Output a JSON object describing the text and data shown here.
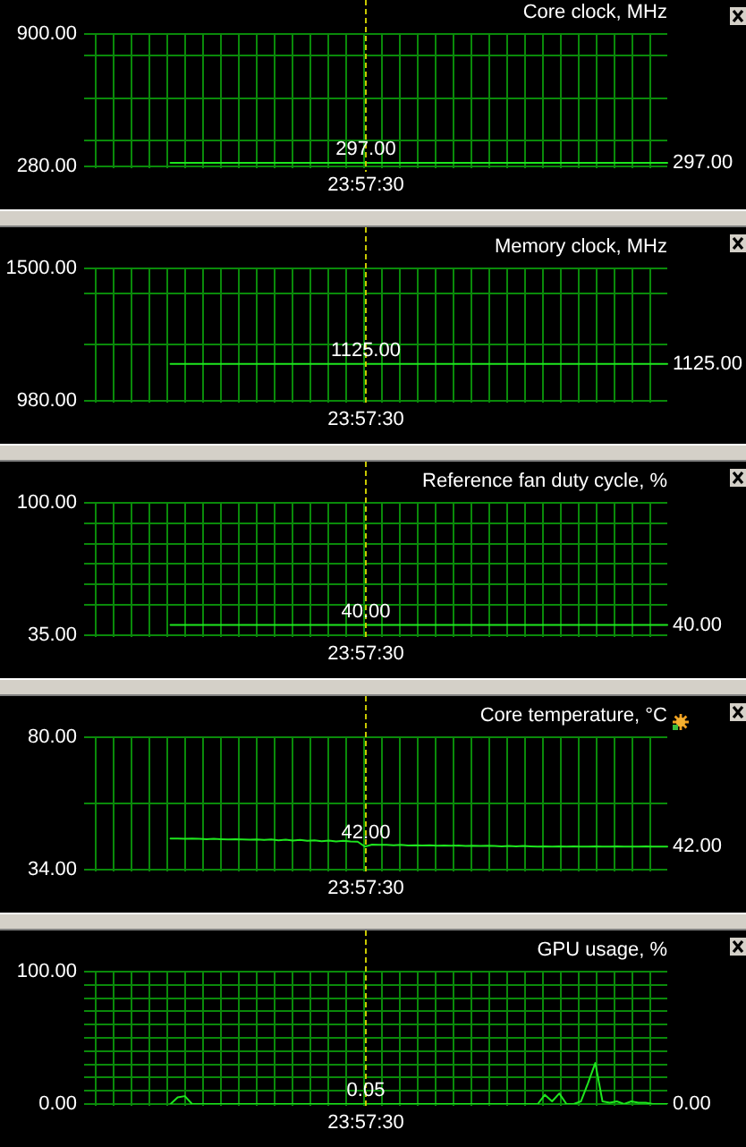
{
  "chart_data": [
    {
      "type": "line",
      "title": "Core clock, MHz",
      "tick_labels": "y",
      "grid": true,
      "categories": [
        null,
        null,
        null,
        null,
        null,
        null,
        null,
        null,
        null,
        null,
        null,
        null,
        null,
        null,
        null,
        null,
        null,
        null,
        null,
        null,
        null,
        null,
        null,
        null,
        null,
        null,
        null,
        null,
        null,
        null,
        null,
        null,
        null,
        null,
        null,
        null,
        null,
        null,
        null,
        null,
        null,
        null,
        null,
        null,
        null,
        null,
        null,
        null,
        null,
        null,
        null,
        null,
        null,
        null,
        null,
        null,
        null,
        null,
        null,
        null,
        null,
        null,
        null,
        null,
        null,
        null,
        null,
        null,
        null,
        null,
        null,
        null,
        null,
        null,
        null,
        null,
        null,
        null,
        null,
        null,
        null,
        null
      ],
      "values": [
        null,
        null,
        null,
        null,
        null,
        null,
        null,
        null,
        null,
        null,
        null,
        null,
        297,
        297,
        297,
        297,
        297,
        297,
        297,
        297,
        297,
        297,
        297,
        297,
        297,
        297,
        297,
        297,
        297,
        297,
        297,
        297,
        297,
        297,
        297,
        297,
        297,
        297,
        297,
        297,
        297,
        297,
        297,
        297,
        297,
        297,
        297,
        297,
        297,
        297,
        297,
        297,
        297,
        297,
        297,
        297,
        297,
        297,
        297,
        297,
        297,
        297,
        297,
        297,
        297,
        297,
        297,
        297,
        297,
        297,
        297,
        297,
        297,
        297,
        297,
        297,
        297,
        297,
        297,
        297,
        297,
        297
      ],
      "color": "#1ee61e",
      "ylim": [
        280,
        900
      ],
      "yticks": [
        {
          "value": 280,
          "label": "280.00"
        },
        {
          "value": 400,
          "label": null
        },
        {
          "value": 600,
          "label": null
        },
        {
          "value": 800,
          "label": null
        },
        {
          "value": 900,
          "label": "900.00"
        }
      ],
      "annotations": [
        "297.00",
        "297.00",
        "23:57:30"
      ]
    },
    {
      "type": "line",
      "title": "Memory clock, MHz",
      "tick_labels": "y",
      "grid": true,
      "categories": [
        null,
        null,
        null,
        null,
        null,
        null,
        null,
        null,
        null,
        null,
        null,
        null,
        null,
        null,
        null,
        null,
        null,
        null,
        null,
        null,
        null,
        null,
        null,
        null,
        null,
        null,
        null,
        null,
        null,
        null,
        null,
        null,
        null,
        null,
        null,
        null,
        null,
        null,
        null,
        null,
        null,
        null,
        null,
        null,
        null,
        null,
        null,
        null,
        null,
        null,
        null,
        null,
        null,
        null,
        null,
        null,
        null,
        null,
        null,
        null,
        null,
        null,
        null,
        null,
        null,
        null,
        null,
        null,
        null,
        null,
        null,
        null,
        null,
        null,
        null,
        null,
        null,
        null,
        null,
        null,
        null,
        null
      ],
      "values": [
        null,
        null,
        null,
        null,
        null,
        null,
        null,
        null,
        null,
        null,
        null,
        null,
        1125,
        1125,
        1125,
        1125,
        1125,
        1125,
        1125,
        1125,
        1125,
        1125,
        1125,
        1125,
        1125,
        1125,
        1125,
        1125,
        1125,
        1125,
        1125,
        1125,
        1125,
        1125,
        1125,
        1125,
        1125,
        1125,
        1125,
        1125,
        1125,
        1125,
        1125,
        1125,
        1125,
        1125,
        1125,
        1125,
        1125,
        1125,
        1125,
        1125,
        1125,
        1125,
        1125,
        1125,
        1125,
        1125,
        1125,
        1125,
        1125,
        1125,
        1125,
        1125,
        1125,
        1125,
        1125,
        1125,
        1125,
        1125,
        1125,
        1125,
        1125,
        1125,
        1125,
        1125,
        1125,
        1125,
        1125,
        1125,
        1125,
        1125
      ],
      "color": "#1ee61e",
      "ylim": [
        980,
        1500
      ],
      "yticks": [
        {
          "value": 980,
          "label": "980.00"
        },
        {
          "value": 1200,
          "label": null
        },
        {
          "value": 1400,
          "label": null
        },
        {
          "value": 1500,
          "label": "1500.00"
        }
      ],
      "annotations": [
        "1125.00",
        "1125.00",
        "23:57:30"
      ]
    },
    {
      "type": "line",
      "title": "Reference fan duty cycle, %",
      "tick_labels": "y",
      "grid": true,
      "categories": [
        null,
        null,
        null,
        null,
        null,
        null,
        null,
        null,
        null,
        null,
        null,
        null,
        null,
        null,
        null,
        null,
        null,
        null,
        null,
        null,
        null,
        null,
        null,
        null,
        null,
        null,
        null,
        null,
        null,
        null,
        null,
        null,
        null,
        null,
        null,
        null,
        null,
        null,
        null,
        null,
        null,
        null,
        null,
        null,
        null,
        null,
        null,
        null,
        null,
        null,
        null,
        null,
        null,
        null,
        null,
        null,
        null,
        null,
        null,
        null,
        null,
        null,
        null,
        null,
        null,
        null,
        null,
        null,
        null,
        null,
        null,
        null,
        null,
        null,
        null,
        null,
        null,
        null,
        null,
        null,
        null,
        null
      ],
      "values": [
        null,
        null,
        null,
        null,
        null,
        null,
        null,
        null,
        null,
        null,
        null,
        null,
        40,
        40,
        40,
        40,
        40,
        40,
        40,
        40,
        40,
        40,
        40,
        40,
        40,
        40,
        40,
        40,
        40,
        40,
        40,
        40,
        40,
        40,
        40,
        40,
        40,
        40,
        40,
        40,
        40,
        40,
        40,
        40,
        40,
        40,
        40,
        40,
        40,
        40,
        40,
        40,
        40,
        40,
        40,
        40,
        40,
        40,
        40,
        40,
        40,
        40,
        40,
        40,
        40,
        40,
        40,
        40,
        40,
        40,
        40,
        40,
        40,
        40,
        40,
        40,
        40,
        40,
        40,
        40,
        40,
        40
      ],
      "color": "#1ee61e",
      "ylim": [
        35,
        100
      ],
      "yticks": [
        {
          "value": 35,
          "label": "35.00"
        },
        {
          "value": 50,
          "label": null
        },
        {
          "value": 60,
          "label": null
        },
        {
          "value": 70,
          "label": null
        },
        {
          "value": 80,
          "label": null
        },
        {
          "value": 90,
          "label": null
        },
        {
          "value": 100,
          "label": "100.00"
        }
      ],
      "annotations": [
        "40.00",
        "40.00",
        "23:57:30"
      ]
    },
    {
      "type": "line",
      "title": "Core temperature, °C",
      "tick_labels": "y",
      "grid": true,
      "categories": [
        null,
        null,
        null,
        null,
        null,
        null,
        null,
        null,
        null,
        null,
        null,
        null,
        null,
        null,
        null,
        null,
        null,
        null,
        null,
        null,
        null,
        null,
        null,
        null,
        null,
        null,
        null,
        null,
        null,
        null,
        null,
        null,
        null,
        null,
        null,
        null,
        null,
        null,
        null,
        null,
        null,
        null,
        null,
        null,
        null,
        null,
        null,
        null,
        null,
        null,
        null,
        null,
        null,
        null,
        null,
        null,
        null,
        null,
        null,
        null,
        null,
        null,
        null,
        null,
        null,
        null,
        null,
        null,
        null,
        null,
        null,
        null,
        null,
        null,
        null,
        null,
        null,
        null,
        null,
        null,
        null,
        null
      ],
      "values": [
        null,
        null,
        null,
        null,
        null,
        null,
        null,
        null,
        null,
        null,
        null,
        null,
        44.8,
        44.8,
        44.7,
        44.8,
        44.7,
        44.6,
        44.7,
        44.6,
        44.5,
        44.6,
        44.5,
        44.4,
        44.5,
        44.3,
        44.5,
        44.2,
        44.4,
        44.1,
        44.3,
        44.0,
        44.2,
        43.9,
        44.1,
        43.8,
        44.0,
        43.8,
        43.7,
        42,
        42.7,
        42.6,
        42.6,
        42.5,
        42.6,
        42.4,
        42.5,
        42.4,
        42.5,
        42.3,
        42.4,
        42.3,
        42.4,
        42.2,
        42.3,
        42.2,
        42.3,
        42.2,
        42.1,
        42.2,
        42.1,
        42.2,
        42.1,
        42.0,
        42.1,
        42.0,
        42.1,
        42.0,
        42.1,
        42.0,
        42.0,
        42.1,
        42.0,
        42.0,
        42.1,
        42.0,
        42.0,
        42.0,
        42.1,
        42.0,
        42.0,
        42.0
      ],
      "color": "#1ee61e",
      "ylim": [
        34,
        80
      ],
      "yticks": [
        {
          "value": 34,
          "label": "34.00"
        },
        {
          "value": 57,
          "label": null
        },
        {
          "value": 80,
          "label": "80.00"
        }
      ],
      "annotations": [
        "42.00",
        "42.00",
        "23:57:30"
      ]
    },
    {
      "type": "line",
      "title": "GPU usage, %",
      "tick_labels": "y",
      "grid": true,
      "categories": [
        null,
        null,
        null,
        null,
        null,
        null,
        null,
        null,
        null,
        null,
        null,
        null,
        null,
        null,
        null,
        null,
        null,
        null,
        null,
        null,
        null,
        null,
        null,
        null,
        null,
        null,
        null,
        null,
        null,
        null,
        null,
        null,
        null,
        null,
        null,
        null,
        null,
        null,
        null,
        null,
        null,
        null,
        null,
        null,
        null,
        null,
        null,
        null,
        null,
        null,
        null,
        null,
        null,
        null,
        null,
        null,
        null,
        null,
        null,
        null,
        null,
        null,
        null,
        null,
        null,
        null,
        null,
        null,
        null,
        null,
        null,
        null,
        null,
        null,
        null,
        null,
        null,
        null,
        null,
        null,
        null,
        null
      ],
      "values": [
        null,
        null,
        null,
        null,
        null,
        null,
        null,
        null,
        null,
        null,
        null,
        null,
        0,
        5,
        6,
        0,
        0,
        0,
        0,
        0,
        0,
        0,
        0,
        0,
        0,
        0,
        0,
        0,
        0,
        0,
        0,
        0,
        0,
        0,
        0,
        0,
        0,
        0,
        0,
        0.05,
        0,
        0,
        0,
        0,
        0,
        0,
        0,
        0,
        0,
        0,
        0,
        0,
        0,
        0,
        0,
        0,
        0,
        0,
        0,
        0,
        0,
        0,
        0,
        0,
        7,
        2,
        8,
        0,
        0,
        2,
        16,
        31,
        2,
        1,
        2,
        0,
        2,
        1,
        1,
        0,
        0,
        0
      ],
      "color": "#1ee61e",
      "ylim": [
        0,
        100
      ],
      "yticks": [
        {
          "value": 0,
          "label": "0.00"
        },
        {
          "value": 10,
          "label": null
        },
        {
          "value": 20,
          "label": null
        },
        {
          "value": 30,
          "label": null
        },
        {
          "value": 40,
          "label": null
        },
        {
          "value": 50,
          "label": null
        },
        {
          "value": 60,
          "label": null
        },
        {
          "value": 70,
          "label": null
        },
        {
          "value": 80,
          "label": null
        },
        {
          "value": 90,
          "label": null
        },
        {
          "value": 100,
          "label": "100.00"
        }
      ],
      "annotations": [
        "0.05",
        "0.00",
        "23:57:30"
      ]
    }
  ]
}
